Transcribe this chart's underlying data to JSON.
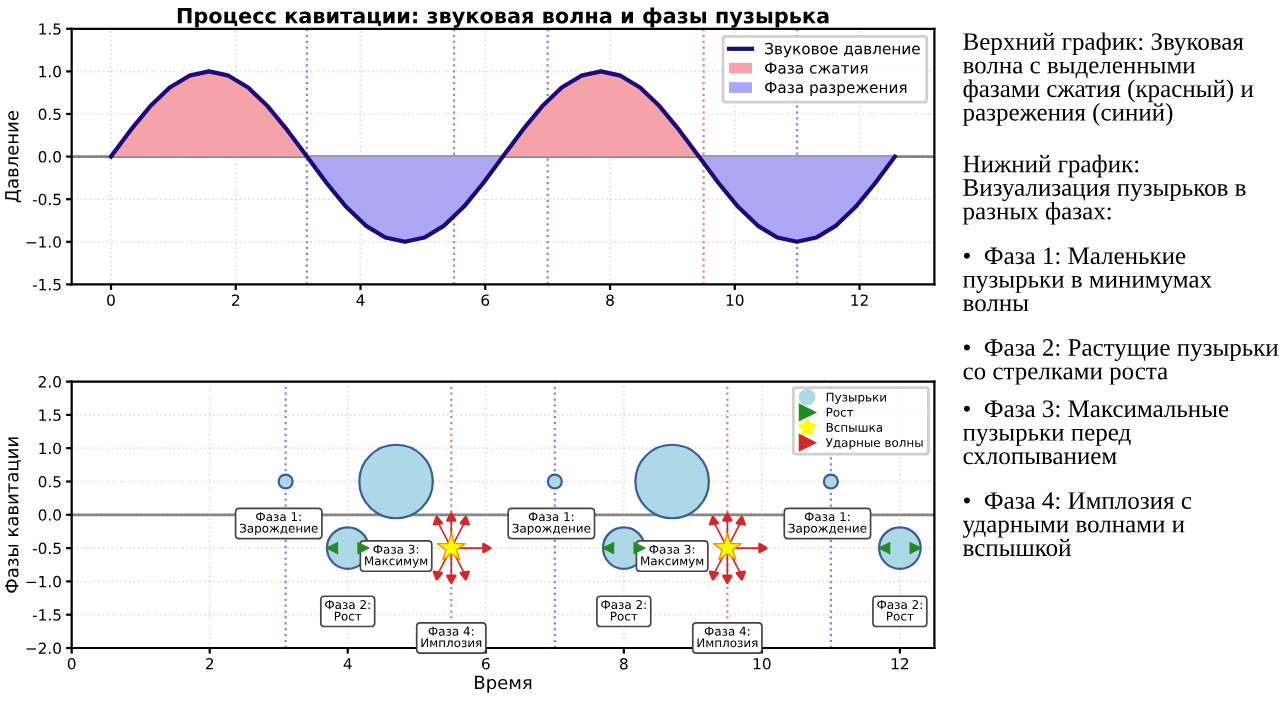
{
  "chart_data": [
    {
      "type": "line",
      "title": "Процесс кавитации: звуковая волна и фазы пузырька",
      "ylabel": "Давление",
      "xlim": [
        -0.63,
        13.2
      ],
      "xticks": [
        0,
        2,
        4,
        6,
        8,
        10,
        12
      ],
      "ylim": [
        -1.5,
        1.5
      ],
      "yticks": [
        -1.5,
        {
          "value": -1,
          "label": "−1.0"
        },
        -0.5,
        {
          "value": 0,
          "label": "0.0"
        },
        0.5,
        {
          "value": 1,
          "label": "1.0"
        },
        1.5
      ],
      "grid": true,
      "legend": "top right",
      "x": [
        0,
        0.314,
        0.628,
        0.942,
        1.257,
        1.571,
        1.885,
        2.199,
        2.513,
        2.827,
        3.142,
        3.456,
        3.77,
        4.084,
        4.398,
        4.712,
        5.027,
        5.341,
        5.655,
        5.969,
        6.283,
        6.597,
        6.912,
        7.226,
        7.54,
        7.854,
        8.168,
        8.482,
        8.796,
        9.11,
        9.425,
        9.739,
        10.053,
        10.367,
        10.681,
        10.996,
        11.31,
        11.624,
        11.938,
        12.252,
        12.566
      ],
      "series": [
        {
          "name": "Звуковое давление",
          "type": "line",
          "color": "#1a0a7a",
          "values": [
            0,
            0.31,
            0.59,
            0.81,
            0.95,
            1.0,
            0.95,
            0.81,
            0.59,
            0.31,
            0,
            -0.31,
            -0.59,
            -0.81,
            -0.95,
            -1.0,
            -0.95,
            -0.81,
            -0.59,
            -0.31,
            0,
            0.31,
            0.59,
            0.81,
            0.95,
            1.0,
            0.95,
            0.81,
            0.59,
            0.31,
            0,
            -0.31,
            -0.59,
            -0.81,
            -0.95,
            -1.0,
            -0.95,
            -0.81,
            -0.59,
            -0.31,
            0
          ]
        },
        {
          "name": "Фаза сжатия",
          "type": "area",
          "color": "#f4a3ab",
          "values": [
            0,
            0.31,
            0.59,
            0.81,
            0.95,
            1.0,
            0.95,
            0.81,
            0.59,
            0.31,
            0,
            null,
            null,
            null,
            null,
            null,
            null,
            null,
            null,
            null,
            0,
            0.31,
            0.59,
            0.81,
            0.95,
            1.0,
            0.95,
            0.81,
            0.59,
            0.31,
            0,
            null,
            null,
            null,
            null,
            null,
            null,
            null,
            null,
            null,
            null
          ]
        },
        {
          "name": "Фаза разрежения",
          "type": "area",
          "color": "#aba7f5",
          "values": [
            null,
            null,
            null,
            null,
            null,
            null,
            null,
            null,
            null,
            null,
            0,
            -0.31,
            -0.59,
            -0.81,
            -0.95,
            -1.0,
            -0.95,
            -0.81,
            -0.59,
            -0.31,
            0,
            null,
            null,
            null,
            null,
            null,
            null,
            null,
            null,
            null,
            0,
            -0.31,
            -0.59,
            -0.81,
            -0.95,
            -1.0,
            -0.95,
            -0.81,
            -0.59,
            -0.31,
            0
          ]
        }
      ],
      "ref_lines": [
        {
          "axis": "y",
          "value": 0,
          "color": "#808080",
          "line_style": "solid"
        },
        {
          "axis": "x",
          "value": 3.14,
          "color": "#7f7fff",
          "line_style": "dotted"
        },
        {
          "axis": "x",
          "value": 5.5,
          "color": "#b08898",
          "line_style": "dotted"
        },
        {
          "axis": "x",
          "value": 7.0,
          "color": "#7f7fff",
          "line_style": "dotted"
        },
        {
          "axis": "x",
          "value": 9.5,
          "color": "#e07f7f",
          "line_style": "dotted"
        },
        {
          "axis": "x",
          "value": 11.0,
          "color": "#7f7fff",
          "line_style": "dotted"
        }
      ]
    },
    {
      "type": "bubble",
      "xlabel": "Время",
      "ylabel": "Фазы кавитации",
      "xlim": [
        0,
        12.5
      ],
      "xticks": [
        0,
        2,
        4,
        6,
        8,
        10,
        12
      ],
      "ylim": [
        -2.0,
        2.0
      ],
      "yticks": [
        {
          "value": -2,
          "label": "−2.0"
        },
        -1.5,
        {
          "value": -1,
          "label": "−1.0"
        },
        -0.5,
        {
          "value": 0,
          "label": "0.0"
        },
        0.5,
        {
          "value": 1,
          "label": "1.0"
        },
        1.5,
        {
          "value": 2,
          "label": "2.0"
        }
      ],
      "grid": true,
      "legend": "top right",
      "series": [
        {
          "name": "Пузырьки",
          "type": "bubble",
          "color": "#add8e6",
          "x": [
            3.1,
            4.7,
            7.0,
            8.7,
            11.0,
            4.0,
            8.0,
            12.0
          ],
          "values": [
            0.5,
            0.5,
            0.5,
            0.5,
            0.5,
            -0.5,
            -0.5,
            -0.5
          ],
          "sizes": [
            0.036,
            1,
            0.036,
            1,
            0.036,
            0.32,
            0.32,
            0.32
          ]
        },
        {
          "name": "Рост",
          "type": "scatter",
          "marker": "triangle",
          "color": "#228b22",
          "x": [
            3.78,
            4.22,
            7.78,
            8.22,
            11.78,
            12.22
          ],
          "values": [
            -0.5,
            -0.5,
            -0.5,
            -0.5,
            -0.5,
            -0.5
          ]
        },
        {
          "name": "Вспышка",
          "type": "scatter",
          "marker": "star",
          "color": "#ffff00",
          "x": [
            5.5,
            9.5
          ],
          "values": [
            -0.5,
            -0.5
          ]
        },
        {
          "name": "Ударные волны",
          "type": "scatter",
          "marker": "triangle",
          "color": "#d62728",
          "x": [
            6.0,
            5.7,
            5.5,
            5.3,
            5.3,
            5.5,
            5.7,
            10.0,
            9.7,
            9.5,
            9.3,
            9.3,
            9.5,
            9.7
          ],
          "values": [
            -0.5,
            -0.1,
            -0.05,
            -0.1,
            -0.9,
            -0.95,
            -0.9,
            -0.5,
            -0.1,
            -0.05,
            -0.1,
            -0.9,
            -0.95,
            -0.9
          ]
        }
      ],
      "ref_lines": [
        {
          "axis": "y",
          "value": 0,
          "color": "#808080",
          "line_style": "solid"
        },
        {
          "axis": "x",
          "value": 3.1,
          "color": "#7f7fff",
          "line_style": "dotted"
        },
        {
          "axis": "x",
          "value": 5.5,
          "color": "#e07f7f",
          "line_style": "dotted"
        },
        {
          "axis": "x",
          "value": 7.0,
          "color": "#7f7fff",
          "line_style": "dotted"
        },
        {
          "axis": "x",
          "value": 9.5,
          "color": "#e07f7f",
          "line_style": "dotted"
        },
        {
          "axis": "x",
          "value": 11.0,
          "color": "#7f7fff",
          "line_style": "dotted"
        }
      ],
      "annotations": [
        {
          "text": "Фаза 1:\nЗарождение",
          "x": 3.0,
          "y": -0.13
        },
        {
          "text": "Фаза 1:\nЗарождение",
          "x": 6.95,
          "y": -0.13
        },
        {
          "text": "Фаза 1:\nЗарождение",
          "x": 10.95,
          "y": -0.13
        },
        {
          "text": "Фаза 2:\nРост",
          "x": 4.0,
          "y": -1.45
        },
        {
          "text": "Фаза 2:\nРост",
          "x": 8.0,
          "y": -1.45
        },
        {
          "text": "Фаза 2:\nРост",
          "x": 12.0,
          "y": -1.45
        },
        {
          "text": "Фаза 3:\nМаксимум",
          "x": 4.7,
          "y": -0.62
        },
        {
          "text": "Фаза 3:\nМаксимум",
          "x": 8.7,
          "y": -0.62
        },
        {
          "text": "Фаза 4:\nИмплозия",
          "x": 5.5,
          "y": -1.85
        },
        {
          "text": "Фаза 4:\nИмплозия",
          "x": 9.5,
          "y": -1.85
        }
      ]
    },
    {
      "type": "other",
      "annotations": [
        "Верхний график: Звуковая волна с выделенными фазами сжатия (красный) и разрежения (синий)",
        "Нижний график: Визуализация пузырьков в разных фазах:",
        "•  Фаза 1: Маленькие пузырьки в минимумах волны",
        "•  Фаза 2: Растущие пузырьки со стрелками роста",
        "•  Фаза 3: Максимальные пузырьки перед схлопыванием",
        "•  Фаза 4: Имплозия с ударными волнами и вспышкой"
      ]
    }
  ]
}
